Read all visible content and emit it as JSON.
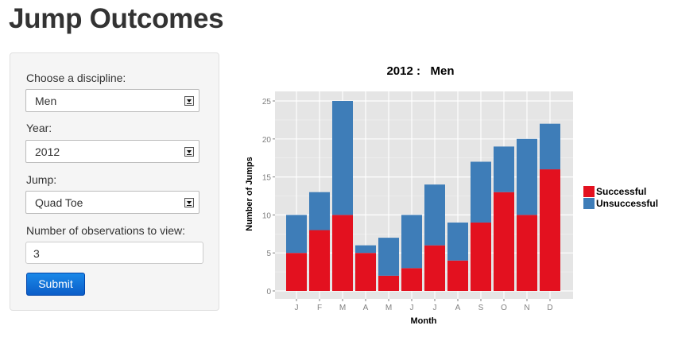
{
  "title": "Jump Outcomes",
  "controls": {
    "discipline": {
      "label": "Choose a discipline:",
      "value": "Men"
    },
    "year": {
      "label": "Year:",
      "value": "2012"
    },
    "jump": {
      "label": "Jump:",
      "value": "Quad Toe"
    },
    "observations": {
      "label": "Number of observations to view:",
      "value": "3"
    },
    "submit_label": "Submit"
  },
  "colors": {
    "successful": "#e3111f",
    "unsuccessful": "#3e7db8",
    "panel_bg": "#e5e5e5",
    "button": "#0b64d0"
  },
  "chart_data": {
    "type": "bar",
    "stacked": true,
    "title": "2012 :   Men",
    "xlabel": "Month",
    "ylabel": "Number of Jumps",
    "categories": [
      "J",
      "F",
      "M",
      "A",
      "M",
      "J",
      "J",
      "A",
      "S",
      "O",
      "N",
      "D"
    ],
    "series": [
      {
        "name": "Successful",
        "values": [
          5,
          8,
          10,
          5,
          2,
          3,
          6,
          4,
          9,
          13,
          10,
          16
        ]
      },
      {
        "name": "Unsuccessful",
        "values": [
          5,
          5,
          15,
          1,
          5,
          7,
          8,
          5,
          8,
          6,
          10,
          6
        ]
      }
    ],
    "yticks": [
      "0",
      "5",
      "10",
      "15",
      "20",
      "25"
    ],
    "ylim": [
      0,
      25
    ],
    "grid": true,
    "legend_position": "right"
  }
}
